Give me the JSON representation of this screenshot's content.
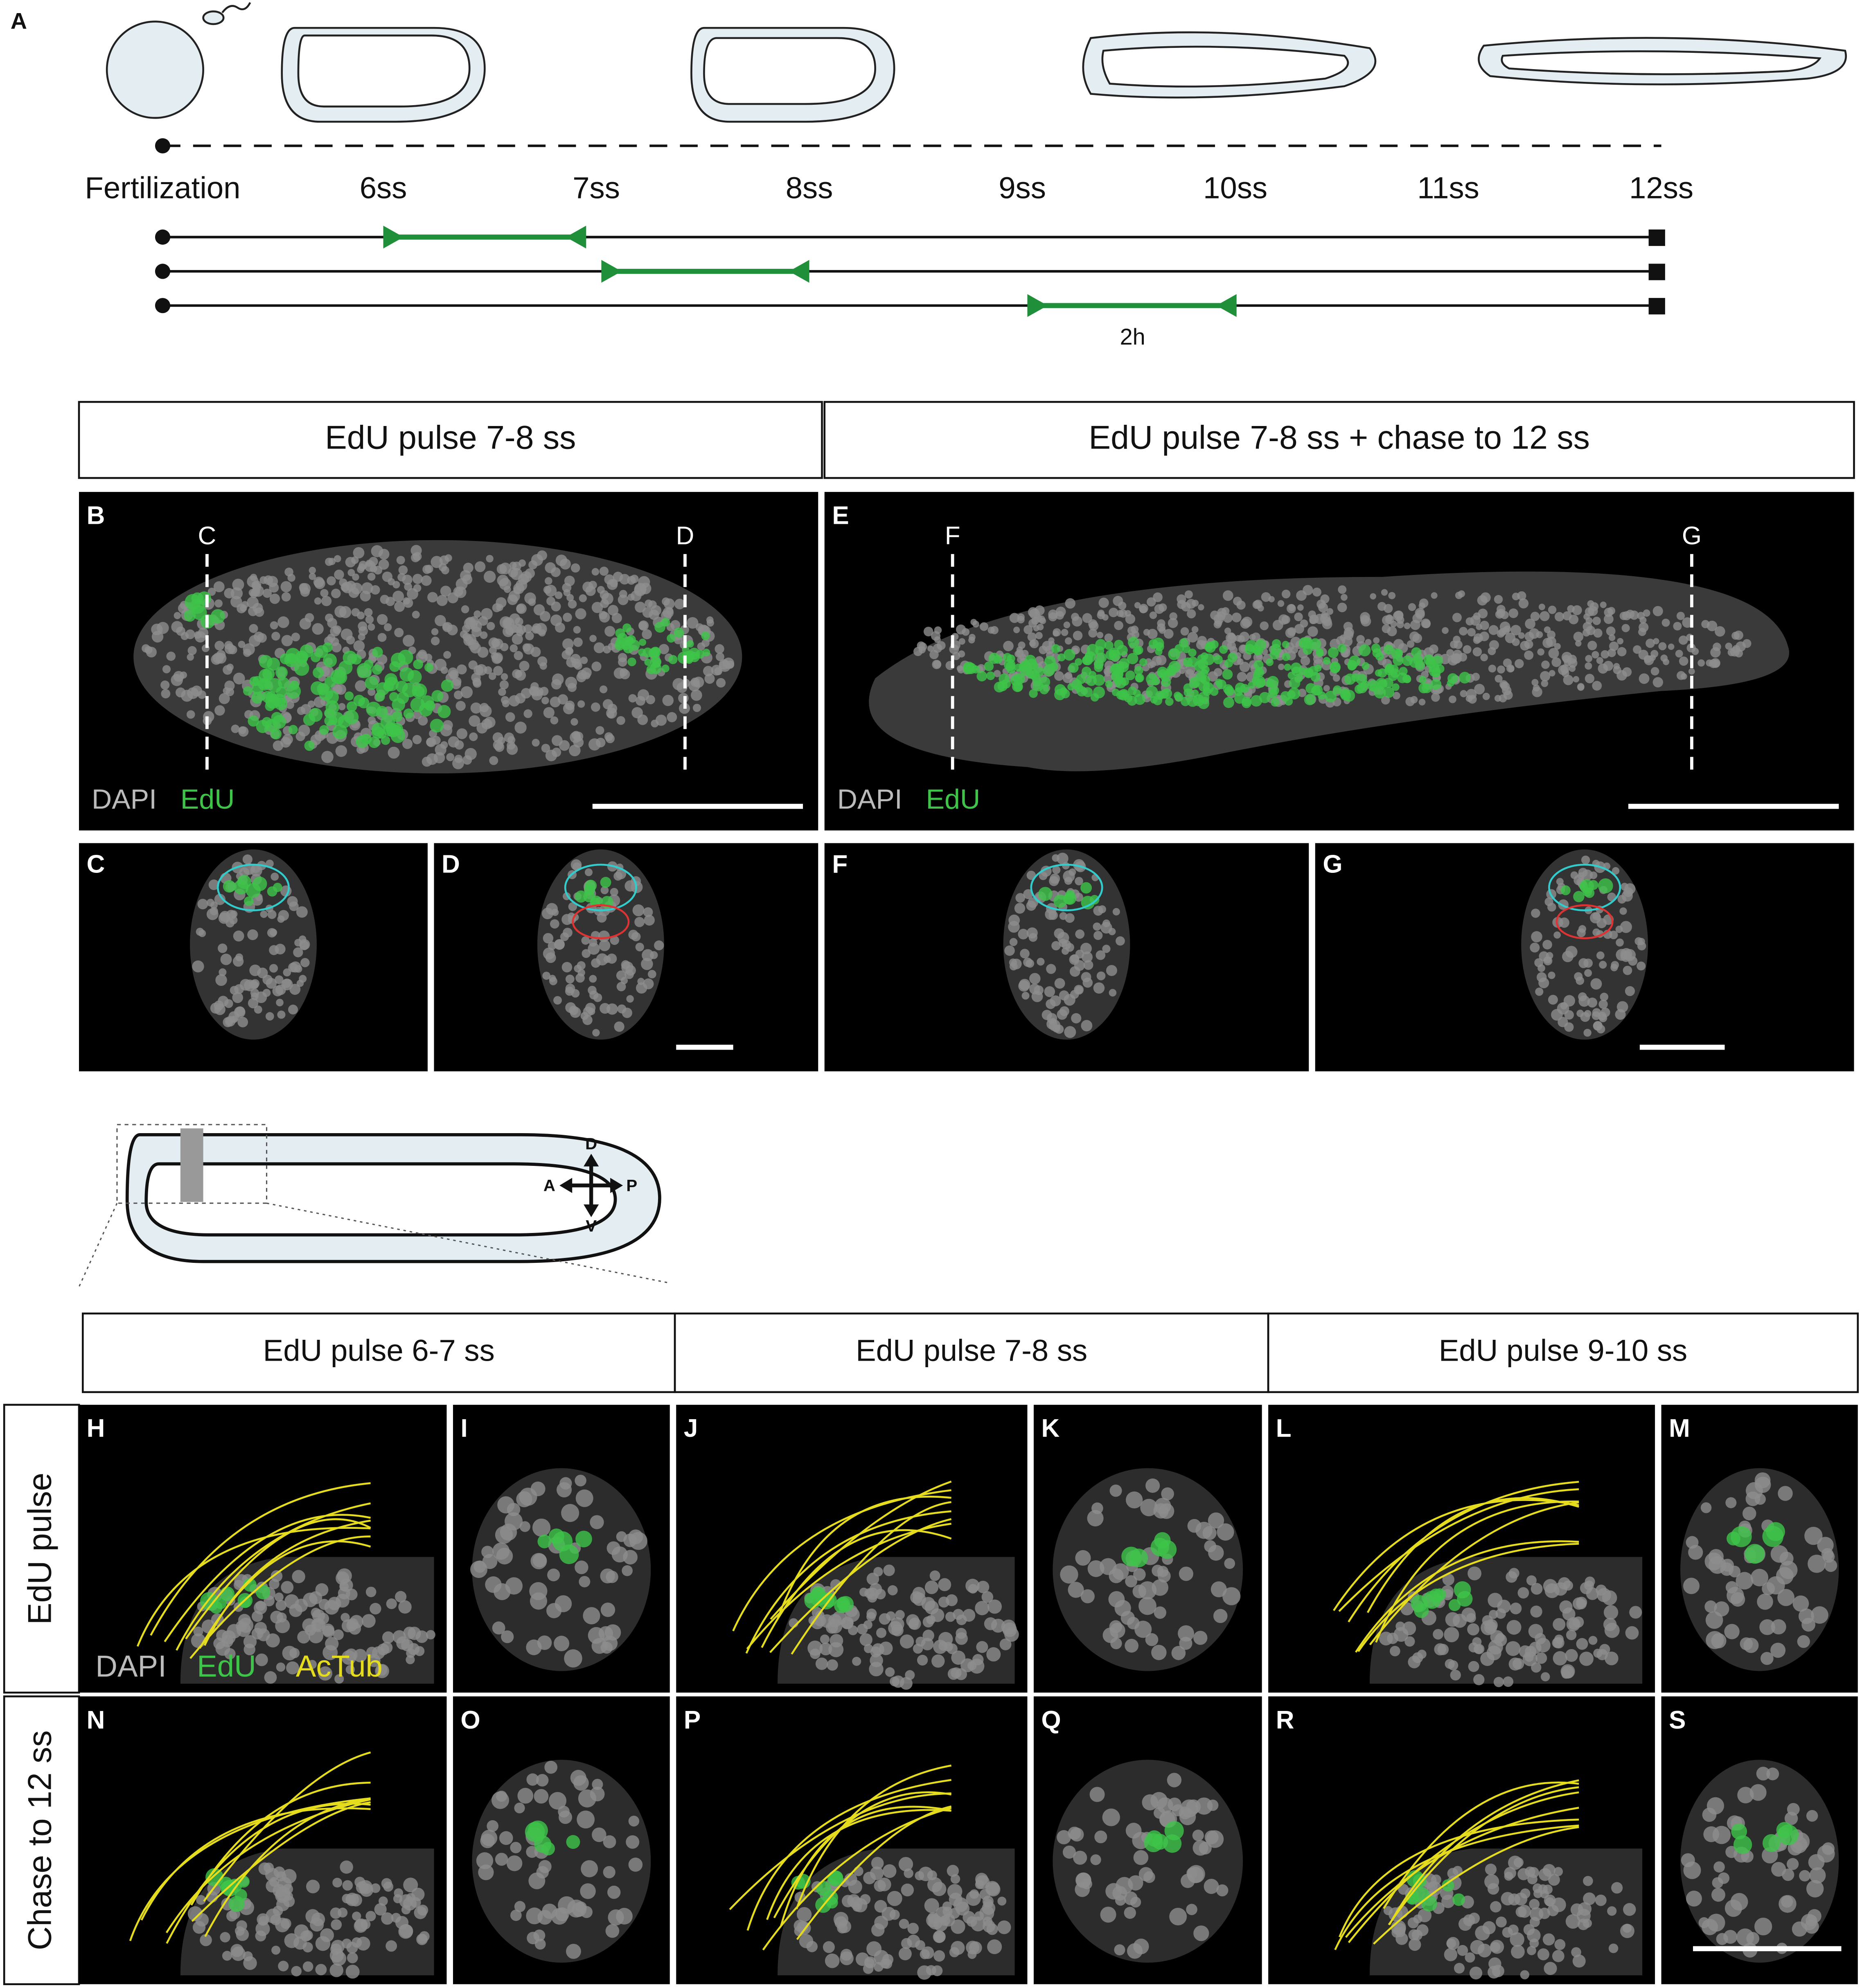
{
  "panel_a": {
    "label": "A",
    "stages": [
      "Fertilization",
      "6ss",
      "7ss",
      "8ss",
      "9ss",
      "10ss",
      "11ss",
      "12ss"
    ],
    "pulse_duration": "2h"
  },
  "headers_top": [
    "EdU pulse 7-8 ss",
    "EdU pulse 7-8 ss + chase to 12 ss"
  ],
  "panels_top": [
    {
      "label": "B",
      "sections": [
        "C",
        "D"
      ],
      "stain": [
        "DAPI",
        "EdU"
      ]
    },
    {
      "label": "E",
      "sections": [
        "F",
        "G"
      ],
      "stain": [
        "DAPI",
        "EdU"
      ]
    }
  ],
  "cross_sections": [
    "C",
    "D",
    "F",
    "G"
  ],
  "orientation": {
    "dorsal": "D",
    "anterior": "A",
    "posterior": "P",
    "ventral": "V"
  },
  "headers_bottom": [
    "EdU pulse 6-7 ss",
    "EdU pulse 7-8 ss",
    "EdU pulse 9-10 ss"
  ],
  "row_labels": [
    "EdU pulse",
    "Chase to 12 ss"
  ],
  "grid_labels": [
    [
      "H",
      "I",
      "J",
      "K",
      "L",
      "M"
    ],
    [
      "N",
      "O",
      "P",
      "Q",
      "R",
      "S"
    ]
  ],
  "stain_bottom": [
    "DAPI",
    "EdU",
    "AcTub"
  ]
}
